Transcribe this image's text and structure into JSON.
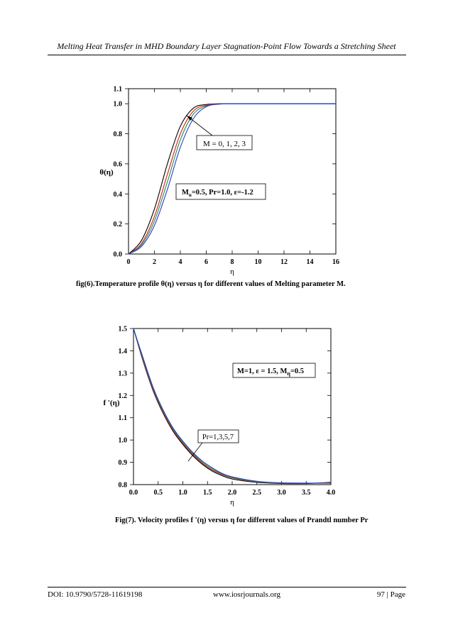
{
  "header": {
    "running_title": "Melting Heat Transfer in MHD Boundary Layer Stagnation-Point Flow Towards a Stretching Sheet"
  },
  "footer": {
    "doi": "DOI: 10.9790/5728-11619198",
    "website": "www.iosrjournals.org",
    "page": "97 | Page"
  },
  "figures": [
    {
      "caption": "fig(6).Temperature profile θ(η) versus η for different values of Melting parameter M.",
      "annotation_top": "M = 0, 1, 2, 3",
      "param_main": "M",
      "param_sub": "n",
      "param_rest": "=0.5, Pr=1.0, ε=-1.2"
    },
    {
      "caption": "Fig(7). Velocity profiles f '(η) versus η for different values of Prandtl number Pr",
      "annotation_top": "M=1, ε = 1.5,  M",
      "annotation_top_sub": "η",
      "annotation_top_rest": "=0.5",
      "annotation_mid": "Pr=1,3,5,7"
    }
  ],
  "chart_data": [
    {
      "type": "line",
      "xlabel": "η",
      "ylabel": "θ(η)",
      "xlim": [
        0,
        16
      ],
      "ylim": [
        0,
        1.1
      ],
      "xticks": [
        0,
        2,
        4,
        6,
        8,
        10,
        12,
        14,
        16
      ],
      "yticks": [
        0.0,
        0.2,
        0.4,
        0.6,
        0.8,
        1.0,
        1.1
      ],
      "xtick_labels": [
        "0",
        "2",
        "4",
        "6",
        "8",
        "10",
        "12",
        "14",
        "16"
      ],
      "ytick_labels": [
        "0.0",
        "0.2",
        "0.4",
        "0.6",
        "0.8",
        "1.0",
        "1.1"
      ],
      "grid": false,
      "x": [
        0,
        1,
        2,
        3,
        4,
        5,
        6,
        7,
        8,
        10,
        12,
        14,
        16
      ],
      "series": [
        {
          "color": "#000000",
          "values": [
            0.0,
            0.09,
            0.3,
            0.6,
            0.85,
            0.97,
            0.995,
            1.0,
            1.0,
            1.0,
            1.0,
            1.0,
            1.0
          ]
        },
        {
          "color": "#d11a1a",
          "values": [
            0.0,
            0.07,
            0.25,
            0.53,
            0.8,
            0.95,
            0.99,
            1.0,
            1.0,
            1.0,
            1.0,
            1.0,
            1.0
          ]
        },
        {
          "color": "#2e8b2e",
          "values": [
            0.0,
            0.06,
            0.22,
            0.48,
            0.76,
            0.93,
            0.985,
            0.998,
            1.0,
            1.0,
            1.0,
            1.0,
            1.0
          ]
        },
        {
          "color": "#1f3fd6",
          "values": [
            0.0,
            0.05,
            0.19,
            0.43,
            0.71,
            0.9,
            0.98,
            0.997,
            1.0,
            1.0,
            1.0,
            1.0,
            1.0
          ]
        }
      ]
    },
    {
      "type": "line",
      "xlabel": "η",
      "ylabel": "f '(η)",
      "xlim": [
        0,
        4
      ],
      "ylim": [
        0.8,
        1.5
      ],
      "xticks": [
        0,
        0.5,
        1,
        1.5,
        2,
        2.5,
        3,
        3.5,
        4
      ],
      "yticks": [
        0.8,
        0.9,
        1.0,
        1.1,
        1.2,
        1.3,
        1.4,
        1.5
      ],
      "xtick_labels": [
        "0.0",
        "0.5",
        "1.0",
        "1.5",
        "2.0",
        "2.5",
        "3.0",
        "3.5",
        "4.0"
      ],
      "ytick_labels": [
        "0.8",
        "0.9",
        "1.0",
        "1.1",
        "1.2",
        "1.3",
        "1.4",
        "1.5"
      ],
      "grid": false,
      "x": [
        0,
        0.2,
        0.4,
        0.6,
        0.8,
        1.0,
        1.2,
        1.4,
        1.6,
        1.8,
        2.0,
        2.5,
        3.0,
        3.5,
        4.0
      ],
      "series": [
        {
          "color": "#000000",
          "values": [
            1.5,
            1.35,
            1.22,
            1.12,
            1.04,
            0.98,
            0.93,
            0.89,
            0.86,
            0.84,
            0.825,
            0.81,
            0.805,
            0.805,
            0.81
          ]
        },
        {
          "color": "#d11a1a",
          "values": [
            1.5,
            1.355,
            1.225,
            1.125,
            1.045,
            0.985,
            0.935,
            0.895,
            0.865,
            0.845,
            0.83,
            0.812,
            0.806,
            0.806,
            0.808
          ]
        },
        {
          "color": "#2e8b2e",
          "values": [
            1.5,
            1.36,
            1.23,
            1.13,
            1.05,
            0.99,
            0.94,
            0.9,
            0.87,
            0.848,
            0.832,
            0.813,
            0.807,
            0.806,
            0.807
          ]
        },
        {
          "color": "#1f3fd6",
          "values": [
            1.5,
            1.365,
            1.235,
            1.135,
            1.055,
            0.995,
            0.945,
            0.905,
            0.875,
            0.85,
            0.835,
            0.815,
            0.808,
            0.807,
            0.806
          ]
        }
      ]
    }
  ]
}
